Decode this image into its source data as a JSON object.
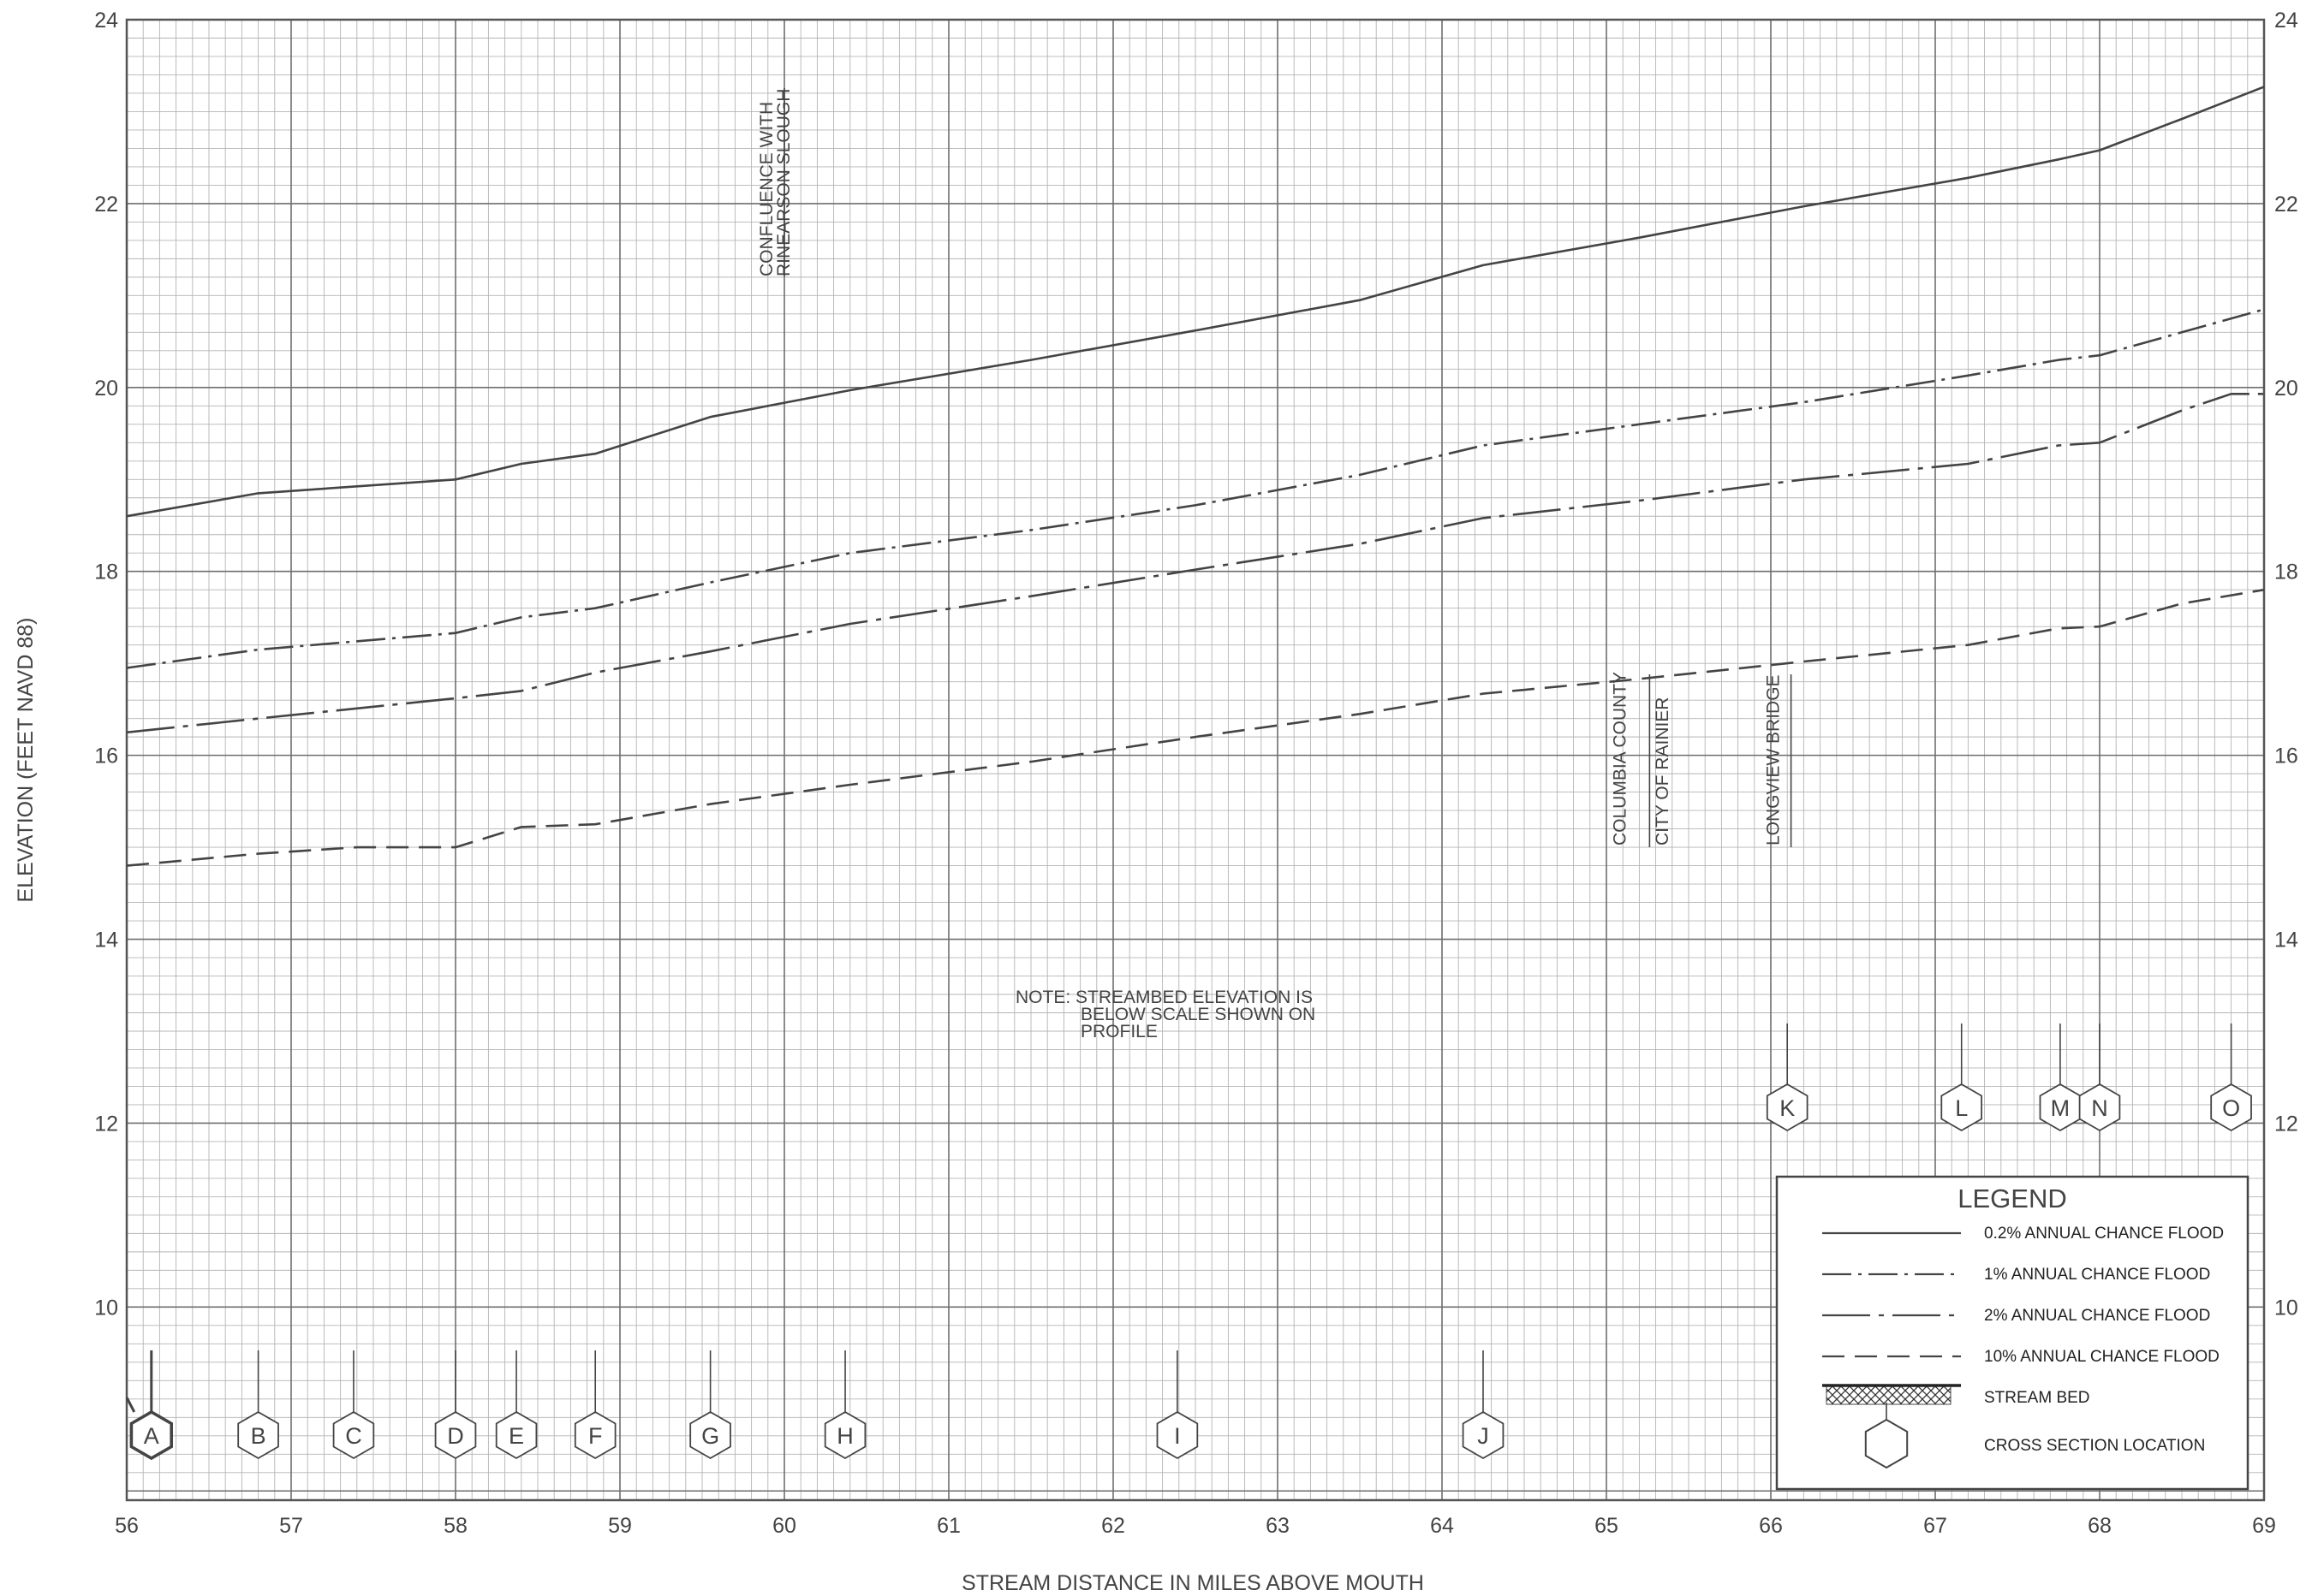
{
  "chart_data": {
    "type": "line",
    "title": "",
    "xlabel": "STREAM DISTANCE IN MILES ABOVE MOUTH",
    "ylabel": "ELEVATION (FEET NAVD 88)",
    "xlim": [
      56,
      69
    ],
    "ylim": [
      7.9,
      24
    ],
    "x_ticks": [
      "56",
      "57",
      "58",
      "59",
      "60",
      "61",
      "62",
      "63",
      "64",
      "65",
      "66",
      "67",
      "68",
      "69"
    ],
    "y_ticks": [
      "10",
      "12",
      "14",
      "16",
      "18",
      "20",
      "22",
      "24"
    ],
    "grid": true,
    "series": [
      {
        "name": "0.2% ANNUAL CHANCE FLOOD",
        "style": "solid",
        "x": [
          56,
          56.8,
          58,
          58.4,
          58.85,
          59.55,
          60.4,
          61.5,
          62.5,
          63.5,
          64.25,
          65.2,
          66.2,
          67.2,
          67.75,
          68,
          68.5,
          69
        ],
        "y": [
          18.6,
          18.85,
          19.0,
          19.17,
          19.28,
          19.68,
          19.97,
          20.3,
          20.62,
          20.95,
          21.33,
          21.63,
          21.97,
          22.28,
          22.48,
          22.58,
          22.92,
          23.27
        ]
      },
      {
        "name": "1% ANNUAL CHANCE FLOOD",
        "style": "dashdot",
        "x": [
          56,
          56.8,
          58,
          58.4,
          58.85,
          59.55,
          60.4,
          61.5,
          62.5,
          63.5,
          64.25,
          65.2,
          66.2,
          67.2,
          67.75,
          68,
          68.5,
          69
        ],
        "y": [
          16.95,
          17.15,
          17.33,
          17.5,
          17.6,
          17.88,
          18.2,
          18.45,
          18.72,
          19.05,
          19.37,
          19.6,
          19.84,
          20.13,
          20.3,
          20.35,
          20.6,
          20.85
        ]
      },
      {
        "name": "2% ANNUAL CHANCE FLOOD",
        "style": "longdashdot",
        "x": [
          56,
          56.8,
          58,
          58.4,
          58.85,
          59.55,
          60.4,
          61.5,
          62.5,
          63.5,
          64.25,
          65.2,
          66.2,
          67.2,
          67.75,
          68,
          68.5,
          68.8,
          69
        ],
        "y": [
          16.25,
          16.4,
          16.62,
          16.7,
          16.9,
          17.13,
          17.43,
          17.73,
          18.02,
          18.3,
          18.58,
          18.77,
          19.0,
          19.17,
          19.37,
          19.4,
          19.75,
          19.93,
          19.93
        ]
      },
      {
        "name": "10% ANNUAL CHANCE FLOOD",
        "style": "dashed",
        "x": [
          56,
          56.8,
          57.4,
          58,
          58.4,
          58.85,
          59.55,
          60.4,
          61.5,
          62.5,
          63.5,
          64.25,
          65.2,
          66.2,
          67.2,
          67.75,
          68,
          68.5,
          69
        ],
        "y": [
          14.8,
          14.93,
          15.0,
          15.0,
          15.22,
          15.25,
          15.47,
          15.68,
          15.93,
          16.2,
          16.45,
          16.67,
          16.83,
          17.02,
          17.2,
          17.38,
          17.4,
          17.65,
          17.8
        ]
      }
    ],
    "cross_sections": {
      "bottom_row": [
        {
          "label": "A",
          "x": 56.15
        },
        {
          "label": "B",
          "x": 56.8
        },
        {
          "label": "C",
          "x": 57.38
        },
        {
          "label": "D",
          "x": 58.0
        },
        {
          "label": "E",
          "x": 58.37
        },
        {
          "label": "F",
          "x": 58.85
        },
        {
          "label": "G",
          "x": 59.55
        },
        {
          "label": "H",
          "x": 60.37
        },
        {
          "label": "I",
          "x": 62.39
        },
        {
          "label": "J",
          "x": 64.25
        }
      ],
      "upper_row": [
        {
          "label": "K",
          "x": 66.1
        },
        {
          "label": "L",
          "x": 67.16
        },
        {
          "label": "M",
          "x": 67.76
        },
        {
          "label": "N",
          "x": 68.0
        },
        {
          "label": "O",
          "x": 68.8
        }
      ]
    },
    "vertical_annotations": [
      {
        "lines": [
          "CONFLUENCE WITH",
          "RINEARSON SLOUGH"
        ],
        "x": 60.0
      },
      {
        "lines": [
          "COLUMBIA COUNTY"
        ],
        "x": 65.2
      },
      {
        "lines": [
          "CITY OF RAINIER"
        ],
        "x": 65.25
      },
      {
        "lines": [
          "LONGVIEW BRIDGE"
        ],
        "x": 66.05
      }
    ],
    "note": [
      "NOTE: STREAMBED ELEVATION IS",
      "BELOW SCALE SHOWN ON",
      "PROFILE"
    ],
    "legend": {
      "title": "LEGEND",
      "items": [
        {
          "label": "0.2% ANNUAL CHANCE FLOOD",
          "style": "solid"
        },
        {
          "label": "1% ANNUAL CHANCE FLOOD",
          "style": "dashdot"
        },
        {
          "label": "2% ANNUAL CHANCE FLOOD",
          "style": "longdashdot"
        },
        {
          "label": "10% ANNUAL CHANCE FLOOD",
          "style": "dashed"
        },
        {
          "label": "STREAM BED",
          "style": "hatch"
        },
        {
          "label": "CROSS SECTION LOCATION",
          "style": "hexagon"
        }
      ],
      "placement": "bottom-right"
    },
    "colors": {
      "line": "#444444",
      "grid_minor": "#b4b4b4",
      "grid_major": "#6e6e6e",
      "text": "#444444"
    }
  }
}
